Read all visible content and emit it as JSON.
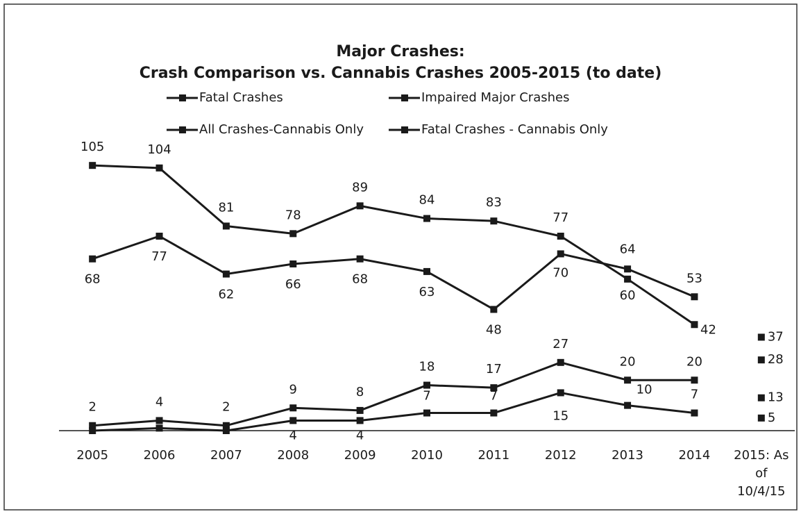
{
  "chart_data": {
    "type": "line",
    "title": "Major Crashes:",
    "subtitle": "Crash Comparison vs. Cannabis Crashes 2005-2015 (to date)",
    "categories": [
      "2005",
      "2006",
      "2007",
      "2008",
      "2009",
      "2010",
      "2011",
      "2012",
      "2013",
      "2014",
      "2015: As of 10/4/15"
    ],
    "ylim": [
      0,
      110
    ],
    "grid": false,
    "series": [
      {
        "name": "Fatal Crashes",
        "color": "#1a1a1a",
        "values": [
          68,
          77,
          62,
          66,
          68,
          63,
          48,
          70,
          64,
          53,
          28
        ]
      },
      {
        "name": "Impaired Major Crashes",
        "color": "#1a1a1a",
        "values": [
          105,
          104,
          81,
          78,
          89,
          84,
          83,
          77,
          60,
          42,
          37
        ]
      },
      {
        "name": "All Crashes-Cannabis Only",
        "color": "#1a1a1a",
        "values": [
          2,
          4,
          2,
          9,
          8,
          18,
          17,
          27,
          20,
          20,
          13
        ]
      },
      {
        "name": "Fatal Crashes - Cannabis Only",
        "color": "#1a1a1a",
        "values": [
          0,
          1,
          0,
          4,
          4,
          7,
          7,
          15,
          10,
          7,
          5
        ],
        "value_labels": [
          null,
          null,
          null,
          "4",
          "4",
          "7",
          "7",
          "15",
          "10",
          "7",
          "5"
        ]
      }
    ]
  }
}
